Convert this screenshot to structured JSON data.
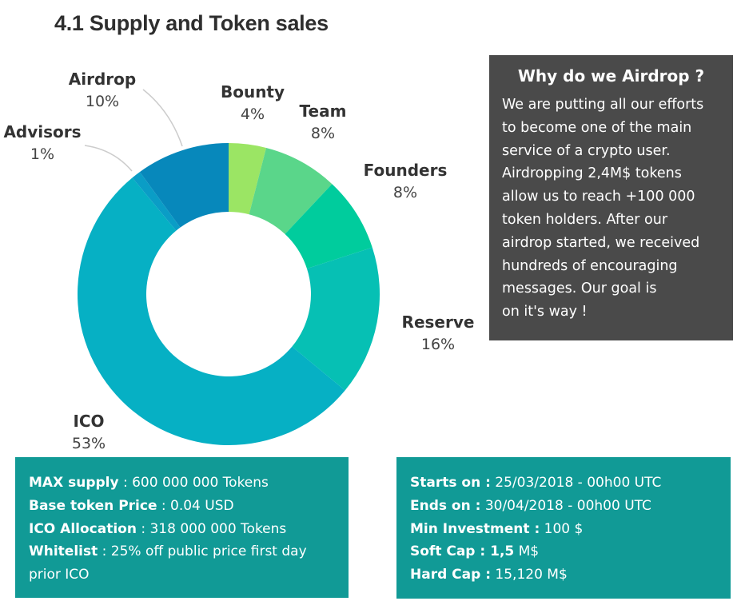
{
  "title": "4.1 Supply and Token sales",
  "chart_data": {
    "type": "pie",
    "categories": [
      "Bounty",
      "Team",
      "Founders",
      "Reserve",
      "ICO",
      "Advisors",
      "Airdrop"
    ],
    "values": [
      4,
      8,
      8,
      16,
      53,
      1,
      10
    ],
    "labels": [
      "4%",
      "8%",
      "8%",
      "16%",
      "53%",
      "1%",
      "10%"
    ],
    "colors": [
      "#9be564",
      "#5ad68a",
      "#00cc9d",
      "#06c0b4",
      "#06b0c4",
      "#0a9dc6",
      "#0788bb"
    ]
  },
  "why": {
    "heading": "Why do we Airdrop ?",
    "lines": [
      "We are putting all our efforts",
      "to become one of the main",
      "service of a crypto user.",
      "Airdropping 2,4M$ tokens",
      "allow us to reach +100 000",
      "token holders. After our",
      "airdrop started, we received",
      "hundreds of encouraging",
      "messages. Our goal is",
      "on it's way !"
    ]
  },
  "supply_box": {
    "max_label": "MAX supply",
    "max_value": " : 600 000 000 Tokens",
    "price_label": "Base token Price",
    "price_value": " : 0.04 USD",
    "alloc_label": "ICO Allocation",
    "alloc_value": " : 318 000 000 Tokens",
    "whitelist_label": "Whitelist",
    "whitelist_value": " : 25% off public price first day prior ICO"
  },
  "dates_box": {
    "starts_label": "Starts on :",
    "starts_value": " 25/03/2018 - 00h00 UTC",
    "ends_label": "Ends on :",
    "ends_value": " 30/04/2018 - 00h00 UTC",
    "min_label": "Min Investment  :",
    "min_value": " 100 $",
    "soft_label": "Soft Cap : 1,5",
    "soft_value": " M$",
    "hard_label": "Hard Cap :",
    "hard_value": " 15,120 M$"
  }
}
